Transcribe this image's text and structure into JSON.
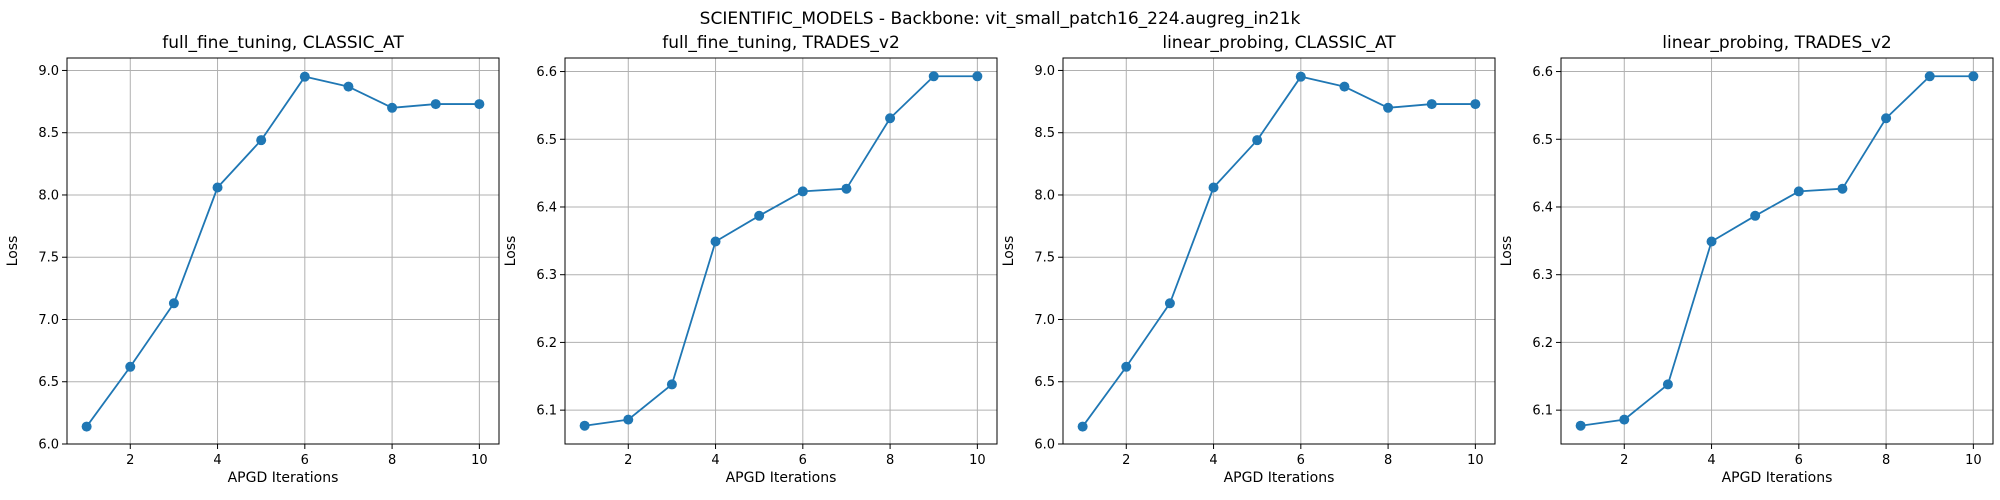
{
  "figure": {
    "suptitle": "SCIENTIFIC_MODELS - Backbone: vit_small_patch16_224.augreg_in21k"
  },
  "style": {
    "line_color": "#1f77b4",
    "grid_color": "#b0b0b0",
    "marker": "circle"
  },
  "chart_data": [
    {
      "type": "line",
      "title": "full_fine_tuning, CLASSIC_AT",
      "xlabel": "APGD Iterations",
      "ylabel": "Loss",
      "grid": true,
      "xlim": [
        0.55,
        10.45
      ],
      "ylim": [
        6.0,
        9.1
      ],
      "xticks": [
        2,
        4,
        6,
        8,
        10
      ],
      "xtick_labels": [
        "2",
        "4",
        "6",
        "8",
        "10"
      ],
      "yticks": [
        6.0,
        6.5,
        7.0,
        7.5,
        8.0,
        8.5,
        9.0
      ],
      "ytick_labels": [
        "6.0",
        "6.5",
        "7.0",
        "7.5",
        "8.0",
        "8.5",
        "9.0"
      ],
      "x": [
        1,
        2,
        3,
        4,
        5,
        6,
        7,
        8,
        9,
        10
      ],
      "y": [
        6.14,
        6.62,
        7.13,
        8.06,
        8.44,
        8.95,
        8.87,
        8.7,
        8.73,
        8.73
      ]
    },
    {
      "type": "line",
      "title": "full_fine_tuning, TRADES_v2",
      "xlabel": "APGD Iterations",
      "ylabel": "Loss",
      "grid": true,
      "xlim": [
        0.55,
        10.45
      ],
      "ylim": [
        6.05,
        6.62
      ],
      "xticks": [
        2,
        4,
        6,
        8,
        10
      ],
      "xtick_labels": [
        "2",
        "4",
        "6",
        "8",
        "10"
      ],
      "yticks": [
        6.1,
        6.2,
        6.3,
        6.4,
        6.5,
        6.6
      ],
      "ytick_labels": [
        "6.1",
        "6.2",
        "6.3",
        "6.4",
        "6.5",
        "6.6"
      ],
      "x": [
        1,
        2,
        3,
        4,
        5,
        6,
        7,
        8,
        9,
        10
      ],
      "y": [
        6.077,
        6.086,
        6.138,
        6.349,
        6.387,
        6.423,
        6.427,
        6.531,
        6.593,
        6.593
      ]
    },
    {
      "type": "line",
      "title": "linear_probing, CLASSIC_AT",
      "xlabel": "APGD Iterations",
      "ylabel": "Loss",
      "grid": true,
      "xlim": [
        0.55,
        10.45
      ],
      "ylim": [
        6.0,
        9.1
      ],
      "xticks": [
        2,
        4,
        6,
        8,
        10
      ],
      "xtick_labels": [
        "2",
        "4",
        "6",
        "8",
        "10"
      ],
      "yticks": [
        6.0,
        6.5,
        7.0,
        7.5,
        8.0,
        8.5,
        9.0
      ],
      "ytick_labels": [
        "6.0",
        "6.5",
        "7.0",
        "7.5",
        "8.0",
        "8.5",
        "9.0"
      ],
      "x": [
        1,
        2,
        3,
        4,
        5,
        6,
        7,
        8,
        9,
        10
      ],
      "y": [
        6.14,
        6.62,
        7.13,
        8.06,
        8.44,
        8.95,
        8.87,
        8.7,
        8.73,
        8.73
      ]
    },
    {
      "type": "line",
      "title": "linear_probing, TRADES_v2",
      "xlabel": "APGD Iterations",
      "ylabel": "Loss",
      "grid": true,
      "xlim": [
        0.55,
        10.45
      ],
      "ylim": [
        6.05,
        6.62
      ],
      "xticks": [
        2,
        4,
        6,
        8,
        10
      ],
      "xtick_labels": [
        "2",
        "4",
        "6",
        "8",
        "10"
      ],
      "yticks": [
        6.1,
        6.2,
        6.3,
        6.4,
        6.5,
        6.6
      ],
      "ytick_labels": [
        "6.1",
        "6.2",
        "6.3",
        "6.4",
        "6.5",
        "6.6"
      ],
      "x": [
        1,
        2,
        3,
        4,
        5,
        6,
        7,
        8,
        9,
        10
      ],
      "y": [
        6.077,
        6.086,
        6.138,
        6.349,
        6.387,
        6.423,
        6.427,
        6.531,
        6.593,
        6.593
      ]
    }
  ]
}
